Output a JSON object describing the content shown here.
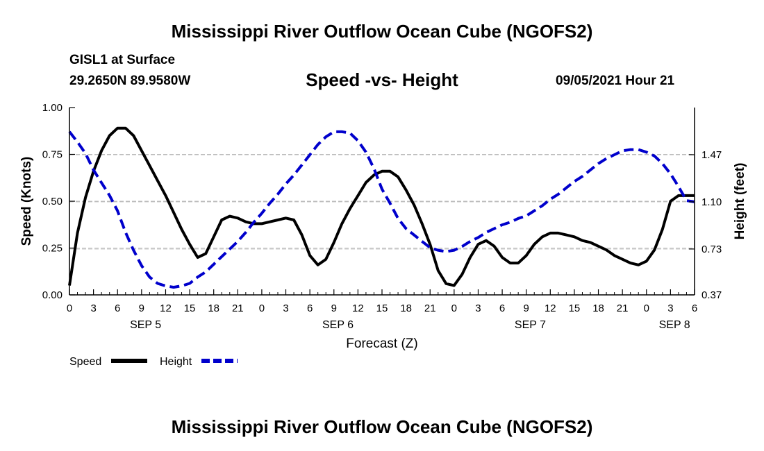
{
  "page": {
    "title_top": "Mississippi River Outflow Ocean Cube (NGOFS2)",
    "title_bottom": "Mississippi River Outflow Ocean Cube (NGOFS2)",
    "station": "GISL1 at Surface",
    "coords": "29.2650N  89.9580W",
    "datetime": "09/05/2021 Hour 21"
  },
  "colors": {
    "speed": "#000000",
    "height": "#0000cc",
    "grid": "#bbbbbb"
  },
  "chart_data": {
    "type": "line",
    "title": "Speed -vs- Height",
    "xlabel": "Forecast (Z)",
    "ylabel": "Speed (Knots)",
    "y2label": "Height (feet)",
    "xlim": [
      0,
      78
    ],
    "ylim": [
      0,
      1
    ],
    "y2lim": [
      0.37,
      1.84
    ],
    "x_ticks": [
      0,
      3,
      6,
      9,
      12,
      15,
      18,
      21,
      24,
      27,
      30,
      33,
      36,
      39,
      42,
      45,
      48,
      51,
      54,
      57,
      60,
      63,
      66,
      69,
      72,
      75,
      78
    ],
    "x_tick_labels": [
      "0",
      "3",
      "6",
      "9",
      "12",
      "15",
      "18",
      "21",
      "0",
      "3",
      "6",
      "9",
      "12",
      "15",
      "18",
      "21",
      "0",
      "3",
      "6",
      "9",
      "12",
      "15",
      "18",
      "21",
      "0",
      "3",
      "6"
    ],
    "day_labels": [
      {
        "label": "SEP 5",
        "x": 9.5
      },
      {
        "label": "SEP 6",
        "x": 33.5
      },
      {
        "label": "SEP 7",
        "x": 57.5
      },
      {
        "label": "SEP 8",
        "x": 75.5
      }
    ],
    "y_ticks": [
      0.0,
      0.25,
      0.5,
      0.75,
      1.0
    ],
    "y_tick_labels": [
      "0.00",
      "0.25",
      "0.50",
      "0.75",
      "1.00"
    ],
    "y2_ticks": [
      0.37,
      0.73,
      1.1,
      1.47
    ],
    "y2_tick_labels": [
      "0.37",
      "0.73",
      "1.10",
      "1.47"
    ],
    "grid": true,
    "legend": [
      {
        "label": "Speed",
        "style": "solid"
      },
      {
        "label": "Height",
        "style": "dashed"
      }
    ],
    "series": [
      {
        "name": "Speed",
        "axis": "left",
        "x": [
          0,
          1,
          2,
          3,
          4,
          5,
          6,
          7,
          8,
          9,
          10,
          11,
          12,
          13,
          14,
          15,
          16,
          17,
          18,
          19,
          20,
          21,
          22,
          23,
          24,
          25,
          26,
          27,
          28,
          29,
          30,
          31,
          32,
          33,
          34,
          35,
          36,
          37,
          38,
          39,
          40,
          41,
          42,
          43,
          44,
          45,
          46,
          47,
          48,
          49,
          50,
          51,
          52,
          53,
          54,
          55,
          56,
          57,
          58,
          59,
          60,
          61,
          62,
          63,
          64,
          65,
          66,
          67,
          68,
          69,
          70,
          71,
          72,
          73,
          74,
          75,
          76,
          77,
          78
        ],
        "values": [
          0.05,
          0.33,
          0.52,
          0.66,
          0.77,
          0.85,
          0.89,
          0.89,
          0.85,
          0.77,
          0.69,
          0.61,
          0.53,
          0.44,
          0.35,
          0.27,
          0.2,
          0.22,
          0.31,
          0.4,
          0.42,
          0.41,
          0.39,
          0.38,
          0.38,
          0.39,
          0.4,
          0.41,
          0.4,
          0.32,
          0.21,
          0.16,
          0.19,
          0.28,
          0.38,
          0.46,
          0.53,
          0.6,
          0.64,
          0.66,
          0.66,
          0.63,
          0.56,
          0.48,
          0.38,
          0.27,
          0.13,
          0.06,
          0.05,
          0.11,
          0.2,
          0.27,
          0.29,
          0.26,
          0.2,
          0.17,
          0.17,
          0.21,
          0.27,
          0.31,
          0.33,
          0.33,
          0.32,
          0.31,
          0.29,
          0.28,
          0.26,
          0.24,
          0.21,
          0.19,
          0.17,
          0.16,
          0.18,
          0.24,
          0.35,
          0.5,
          0.53,
          0.53,
          0.53
        ]
      },
      {
        "name": "Height",
        "axis": "right",
        "x": [
          0,
          1,
          2,
          3,
          4,
          5,
          6,
          7,
          8,
          9,
          10,
          11,
          12,
          13,
          14,
          15,
          16,
          17,
          18,
          19,
          20,
          21,
          22,
          23,
          24,
          25,
          26,
          27,
          28,
          29,
          30,
          31,
          32,
          33,
          34,
          35,
          36,
          37,
          38,
          39,
          40,
          41,
          42,
          43,
          44,
          45,
          46,
          47,
          48,
          49,
          50,
          51,
          52,
          53,
          54,
          55,
          56,
          57,
          58,
          59,
          60,
          61,
          62,
          63,
          64,
          65,
          66,
          67,
          68,
          69,
          70,
          71,
          72,
          73,
          74,
          75,
          76,
          77,
          78
        ],
        "values": [
          1.65,
          1.57,
          1.48,
          1.35,
          1.25,
          1.15,
          1.03,
          0.86,
          0.72,
          0.6,
          0.51,
          0.46,
          0.44,
          0.43,
          0.44,
          0.46,
          0.51,
          0.55,
          0.61,
          0.67,
          0.73,
          0.79,
          0.86,
          0.94,
          1.01,
          1.09,
          1.16,
          1.24,
          1.31,
          1.39,
          1.47,
          1.55,
          1.61,
          1.65,
          1.65,
          1.64,
          1.58,
          1.49,
          1.36,
          1.2,
          1.09,
          0.97,
          0.89,
          0.84,
          0.79,
          0.74,
          0.72,
          0.71,
          0.72,
          0.75,
          0.79,
          0.82,
          0.86,
          0.89,
          0.92,
          0.94,
          0.97,
          0.99,
          1.03,
          1.07,
          1.12,
          1.16,
          1.21,
          1.26,
          1.3,
          1.35,
          1.4,
          1.44,
          1.47,
          1.5,
          1.51,
          1.51,
          1.49,
          1.46,
          1.4,
          1.32,
          1.22,
          1.11,
          1.1
        ]
      }
    ]
  }
}
